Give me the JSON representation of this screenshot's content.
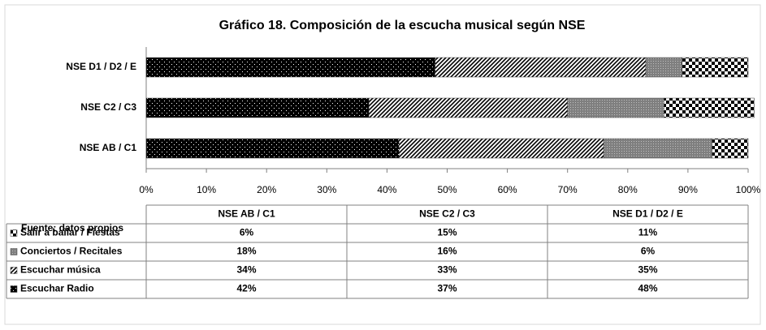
{
  "chart_data": {
    "type": "stacked_bar_horizontal",
    "title": "Gráfico 18. Composición de la escucha musical según NSE",
    "source": "Fuente: datos propios",
    "categories": [
      "NSE AB / C1",
      "NSE C2 / C3",
      "NSE D1 / D2 / E"
    ],
    "series": [
      {
        "name": "Escuchar Radio",
        "color": "#000000",
        "values": [
          42,
          37,
          48
        ],
        "value_labels": [
          "42%",
          "37%",
          "48%"
        ]
      },
      {
        "name": "Escuchar música",
        "color": "#000000",
        "values": [
          34,
          33,
          35
        ],
        "value_labels": [
          "34%",
          "33%",
          "35%"
        ]
      },
      {
        "name": "Conciertos / Recitales",
        "color": "#7f7f7f",
        "values": [
          18,
          16,
          6
        ],
        "value_labels": [
          "18%",
          "16%",
          "6%"
        ]
      },
      {
        "name": "Salir a bailar / Fiestas",
        "color": "#000000",
        "values": [
          6,
          15,
          11
        ],
        "value_labels": [
          "6%",
          "15%",
          "11%"
        ]
      }
    ],
    "xlim": [
      0,
      100
    ],
    "xticks": [
      {
        "value": 0,
        "label": "0%"
      },
      {
        "value": 10,
        "label": "10%"
      },
      {
        "value": 20,
        "label": "20%"
      },
      {
        "value": 30,
        "label": "30%"
      },
      {
        "value": 40,
        "label": "40%"
      },
      {
        "value": 50,
        "label": "50%"
      },
      {
        "value": 60,
        "label": "60%"
      },
      {
        "value": 70,
        "label": "70%"
      },
      {
        "value": 80,
        "label": "80%"
      },
      {
        "value": 90,
        "label": "90%"
      },
      {
        "value": 100,
        "label": "100%"
      }
    ]
  }
}
